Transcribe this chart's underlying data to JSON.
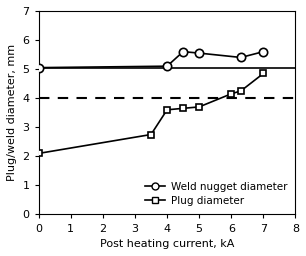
{
  "weld_nugget_x": [
    0,
    4.0,
    4.5,
    5.0,
    6.3,
    7.0
  ],
  "weld_nugget_y": [
    5.05,
    5.1,
    5.6,
    5.55,
    5.4,
    5.6
  ],
  "plug_x": [
    0,
    3.5,
    4.0,
    4.5,
    5.0,
    6.0,
    6.3,
    7.0
  ],
  "plug_y": [
    2.1,
    2.75,
    3.6,
    3.65,
    3.7,
    4.15,
    4.25,
    4.85
  ],
  "hline_y": 5.05,
  "dashed_y": 4.0,
  "xlim": [
    0,
    8
  ],
  "ylim": [
    0,
    7
  ],
  "xticks": [
    0,
    1,
    2,
    3,
    4,
    5,
    6,
    7,
    8
  ],
  "yticks": [
    0,
    1,
    2,
    3,
    4,
    5,
    6,
    7
  ],
  "xlabel": "Post heating current, kA",
  "ylabel": "Plug/weld diameter, mm",
  "legend_weld": "Weld nugget diameter",
  "legend_plug": "Plug diameter",
  "line_color": "black",
  "bg_color": "#ffffff",
  "axis_fontsize": 8,
  "legend_fontsize": 7.5
}
